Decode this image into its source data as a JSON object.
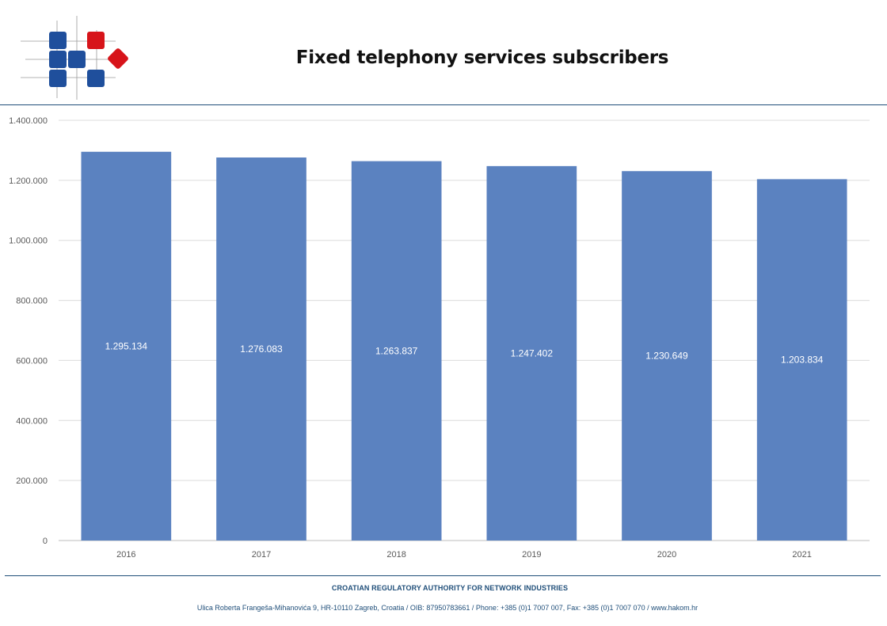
{
  "header": {
    "title": "Fixed telephony services subscribers"
  },
  "colors": {
    "bar": "#5b82c0",
    "logo_blue": "#1f4f9c",
    "logo_red": "#d7141a",
    "rule": "#1f4e79"
  },
  "chart_data": {
    "type": "bar",
    "title": "Fixed telephony services subscribers",
    "categories": [
      "2016",
      "2017",
      "2018",
      "2019",
      "2020",
      "2021"
    ],
    "values": [
      1295134,
      1276083,
      1263837,
      1247402,
      1230649,
      1203834
    ],
    "data_labels": [
      "1.295.134",
      "1.276.083",
      "1.263.837",
      "1.247.402",
      "1.230.649",
      "1.203.834"
    ],
    "y_ticks": [
      0,
      200000,
      400000,
      600000,
      800000,
      1000000,
      1200000,
      1400000
    ],
    "y_tick_labels": [
      "0",
      "200.000",
      "400.000",
      "600.000",
      "800.000",
      "1.000.000",
      "1.200.000",
      "1.400.000"
    ],
    "ylim": [
      0,
      1400000
    ],
    "xlabel": "",
    "ylabel": "",
    "grid": true,
    "legend": "none"
  },
  "footer": {
    "organization": "CROATIAN REGULATORY AUTHORITY FOR NETWORK INDUSTRIES",
    "address": "Ulica Roberta Frangeša-Mihanovića 9, HR-10110 Zagreb, Croatia / OIB: 87950783661 / Phone: +385 (0)1 7007 007, Fax: +385 (0)1 7007 070 / www.hakom.hr"
  }
}
